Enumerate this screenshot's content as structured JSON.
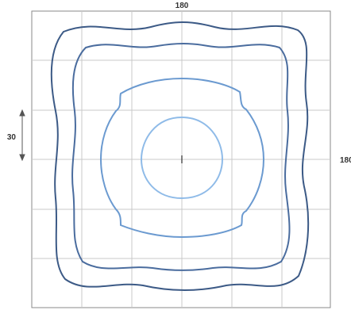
{
  "diagram": {
    "top_label": "180",
    "right_label": "180",
    "left_label": "30",
    "colors": {
      "frame": "#8a8a8a",
      "grid": "#c8c8c8",
      "label": "#333333",
      "outer_contour": "#3c5a86",
      "second_contour": "#4a6c9e",
      "inner_contour": "#6b9ad0",
      "core_contour": "#8fbbe8"
    }
  }
}
